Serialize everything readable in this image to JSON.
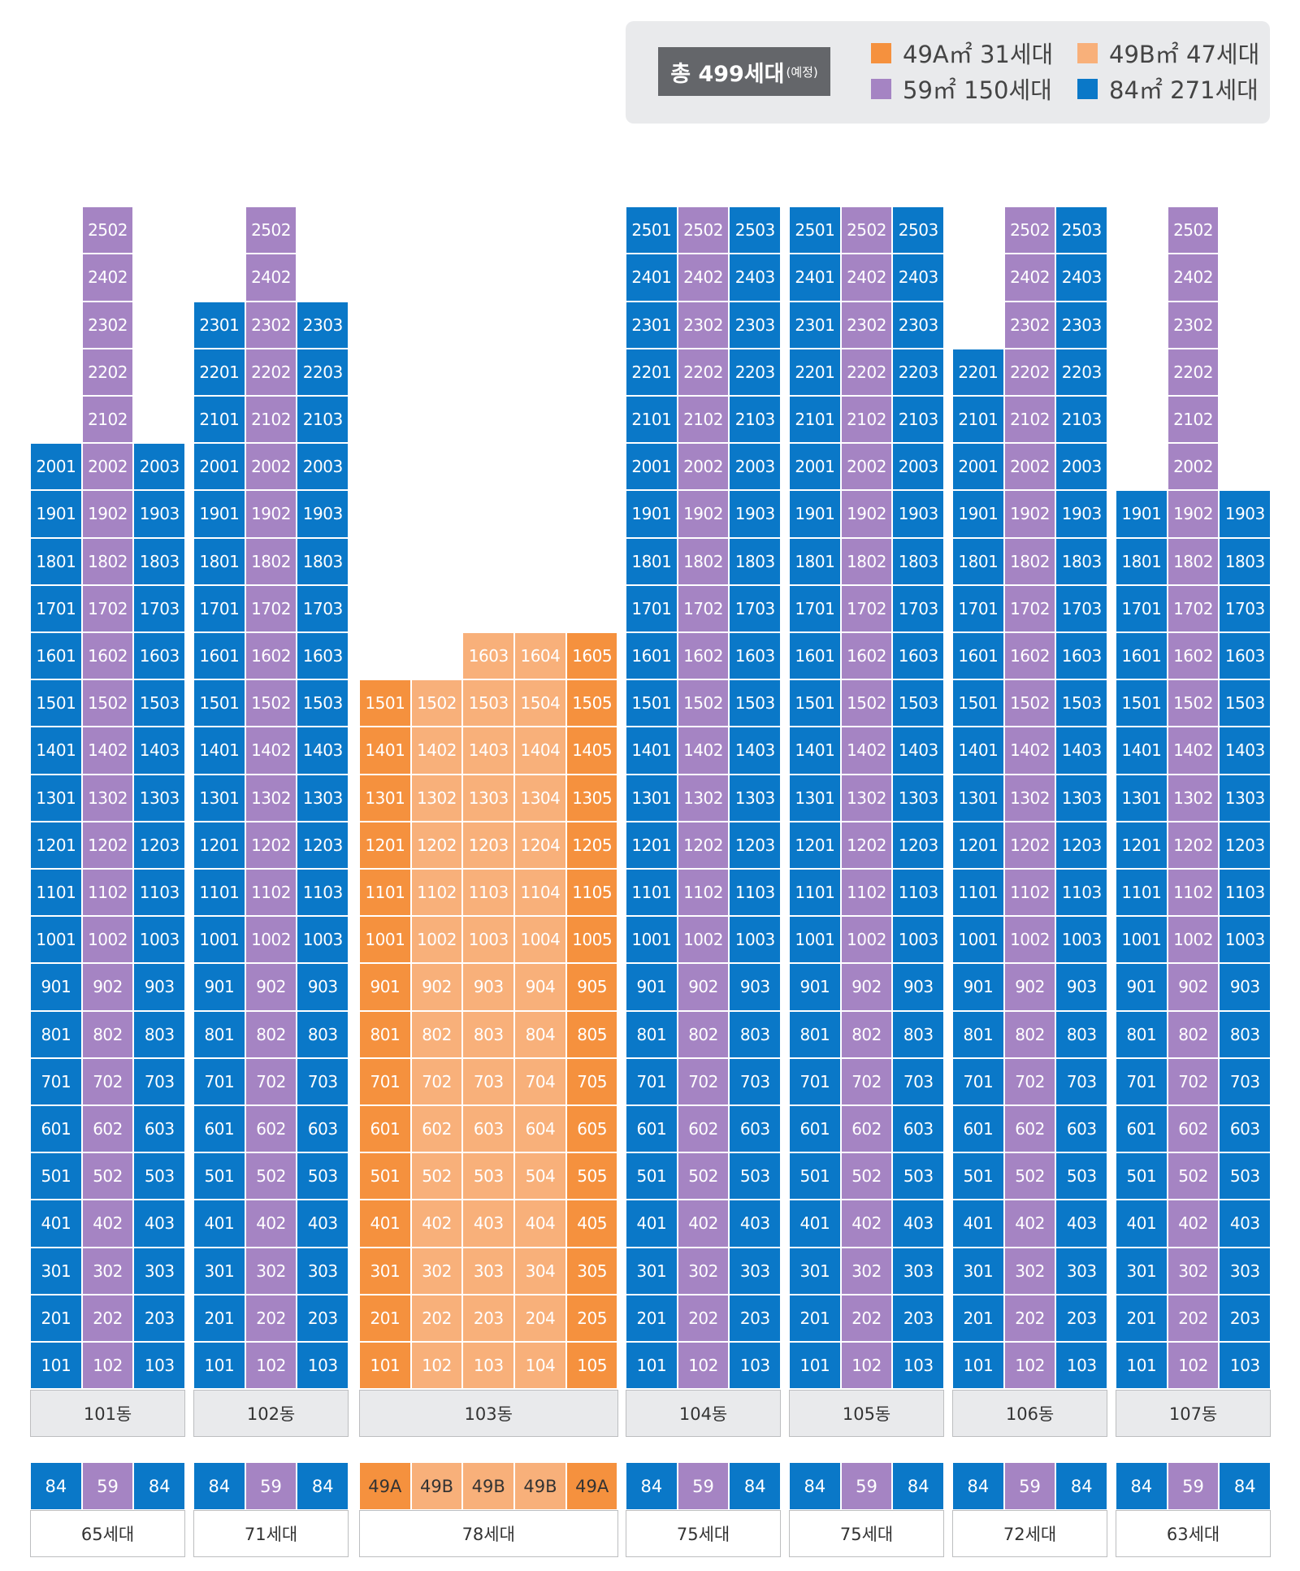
{
  "legend": {
    "total_label": "총 499세대",
    "total_paren": "(예정)",
    "items": [
      {
        "key": "49A",
        "label": "49A㎡ 31세대",
        "color": "#f5913e"
      },
      {
        "key": "49B",
        "label": "49B㎡ 47세대",
        "color": "#f8b07a"
      },
      {
        "key": "59",
        "label": "59㎡ 150세대",
        "color": "#a584c3"
      },
      {
        "key": "84",
        "label": "84㎡ 271세대",
        "color": "#0a78c8"
      }
    ]
  },
  "chart_data": {
    "type": "table",
    "title": "총 499세대(예정)",
    "buildings": [
      {
        "name": "101동",
        "households": "65세대",
        "floors": 25,
        "lines": [
          {
            "no": "01",
            "type": "84",
            "top_floor": 20
          },
          {
            "no": "02",
            "type": "59",
            "top_floor": 25
          },
          {
            "no": "03",
            "type": "84",
            "top_floor": 20
          }
        ]
      },
      {
        "name": "102동",
        "households": "71세대",
        "floors": 25,
        "lines": [
          {
            "no": "01",
            "type": "84",
            "top_floor": 23
          },
          {
            "no": "02",
            "type": "59",
            "top_floor": 25
          },
          {
            "no": "03",
            "type": "84",
            "top_floor": 23
          }
        ]
      },
      {
        "name": "103동",
        "households": "78세대",
        "floors": 16,
        "lines": [
          {
            "no": "01",
            "type": "49A",
            "top_floor": 15
          },
          {
            "no": "02",
            "type": "49B",
            "top_floor": 15
          },
          {
            "no": "03",
            "type": "49B",
            "top_floor": 16
          },
          {
            "no": "04",
            "type": "49B",
            "top_floor": 16
          },
          {
            "no": "05",
            "type": "49A",
            "top_floor": 16
          }
        ]
      },
      {
        "name": "104동",
        "households": "75세대",
        "floors": 25,
        "lines": [
          {
            "no": "01",
            "type": "84",
            "top_floor": 25
          },
          {
            "no": "02",
            "type": "59",
            "top_floor": 25
          },
          {
            "no": "03",
            "type": "84",
            "top_floor": 25
          }
        ]
      },
      {
        "name": "105동",
        "households": "75세대",
        "floors": 25,
        "lines": [
          {
            "no": "01",
            "type": "84",
            "top_floor": 25
          },
          {
            "no": "02",
            "type": "59",
            "top_floor": 25
          },
          {
            "no": "03",
            "type": "84",
            "top_floor": 25
          }
        ]
      },
      {
        "name": "106동",
        "households": "72세대",
        "floors": 25,
        "lines": [
          {
            "no": "01",
            "type": "84",
            "top_floor": 22
          },
          {
            "no": "02",
            "type": "59",
            "top_floor": 25
          },
          {
            "no": "03",
            "type": "84",
            "top_floor": 25
          }
        ]
      },
      {
        "name": "107동",
        "households": "63세대",
        "floors": 25,
        "lines": [
          {
            "no": "01",
            "type": "84",
            "top_floor": 19
          },
          {
            "no": "02",
            "type": "59",
            "top_floor": 25
          },
          {
            "no": "03",
            "type": "84",
            "top_floor": 19
          }
        ]
      }
    ]
  }
}
